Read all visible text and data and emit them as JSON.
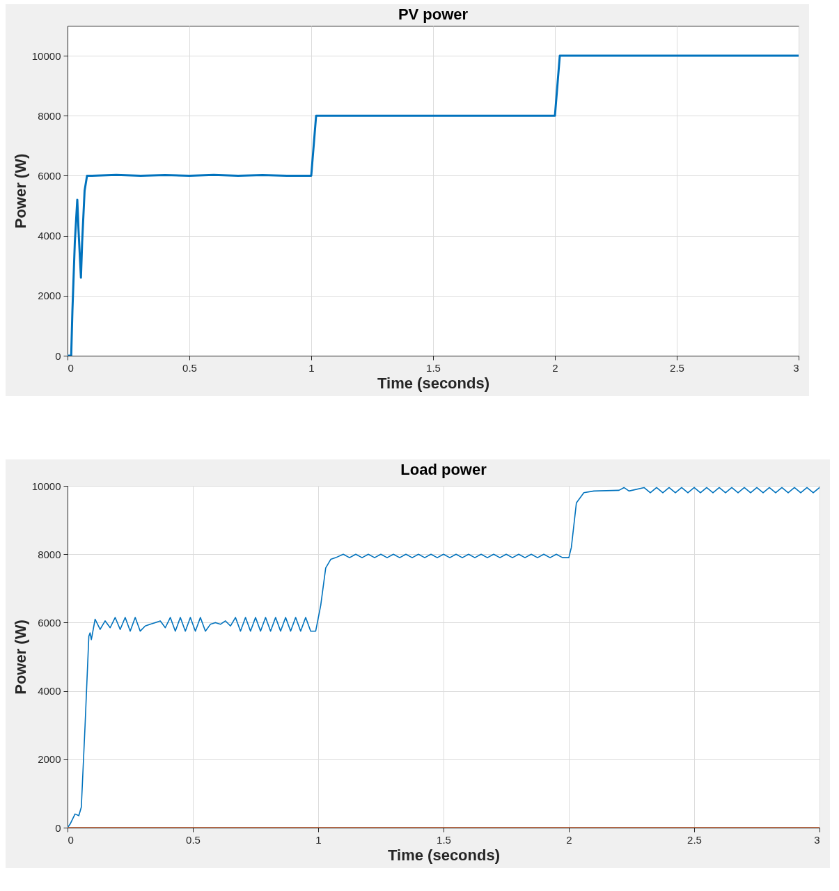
{
  "chart_data": [
    {
      "type": "line",
      "title": "PV power",
      "xlabel": "Time (seconds)",
      "ylabel": "Power (W)",
      "xlim": [
        0,
        3
      ],
      "ylim": [
        0,
        11000
      ],
      "xticks": [
        0,
        0.5,
        1,
        1.5,
        2,
        2.5,
        3
      ],
      "yticks": [
        0,
        2000,
        4000,
        6000,
        8000,
        10000
      ],
      "grid": true,
      "x": [
        0,
        0.015,
        0.02,
        0.03,
        0.04,
        0.045,
        0.055,
        0.06,
        0.07,
        0.08,
        0.1,
        0.2,
        0.3,
        0.4,
        0.5,
        0.6,
        0.7,
        0.8,
        0.9,
        1.0,
        1.02,
        1.1,
        1.5,
        2.0,
        2.02,
        2.1,
        2.5,
        3.0
      ],
      "series": [
        {
          "color": "#0072bd",
          "values": [
            0,
            0,
            1500,
            3800,
            5200,
            4200,
            2600,
            3800,
            5500,
            6000,
            6000,
            6030,
            6000,
            6020,
            6000,
            6030,
            6000,
            6020,
            6000,
            6000,
            8000,
            8000,
            8000,
            8000,
            10000,
            10000,
            10000,
            10000
          ]
        }
      ]
    },
    {
      "type": "line",
      "title": "Load power",
      "xlabel": "Time (seconds)",
      "ylabel": "Power (W)",
      "xlim": [
        0,
        3
      ],
      "ylim": [
        0,
        10000
      ],
      "xticks": [
        0,
        0.5,
        1,
        1.5,
        2,
        2.5,
        3
      ],
      "yticks": [
        0,
        2000,
        4000,
        6000,
        8000,
        10000
      ],
      "grid": true,
      "x": [
        0,
        0.01,
        0.03,
        0.045,
        0.055,
        0.07,
        0.085,
        0.09,
        0.095,
        0.11,
        0.13,
        0.15,
        0.17,
        0.19,
        0.21,
        0.23,
        0.25,
        0.27,
        0.29,
        0.31,
        0.33,
        0.35,
        0.37,
        0.39,
        0.41,
        0.43,
        0.45,
        0.47,
        0.49,
        0.51,
        0.53,
        0.55,
        0.57,
        0.59,
        0.61,
        0.63,
        0.65,
        0.67,
        0.69,
        0.71,
        0.73,
        0.75,
        0.77,
        0.79,
        0.81,
        0.83,
        0.85,
        0.87,
        0.89,
        0.91,
        0.93,
        0.95,
        0.97,
        0.99,
        1.01,
        1.03,
        1.05,
        1.07,
        1.1,
        1.125,
        1.15,
        1.175,
        1.2,
        1.225,
        1.25,
        1.275,
        1.3,
        1.325,
        1.35,
        1.375,
        1.4,
        1.425,
        1.45,
        1.475,
        1.5,
        1.525,
        1.55,
        1.575,
        1.6,
        1.625,
        1.65,
        1.675,
        1.7,
        1.725,
        1.75,
        1.775,
        1.8,
        1.825,
        1.85,
        1.875,
        1.9,
        1.925,
        1.95,
        1.975,
        2.0,
        2.01,
        2.03,
        2.06,
        2.1,
        2.2,
        2.22,
        2.24,
        2.3,
        2.325,
        2.35,
        2.375,
        2.4,
        2.425,
        2.45,
        2.475,
        2.5,
        2.525,
        2.55,
        2.575,
        2.6,
        2.625,
        2.65,
        2.675,
        2.7,
        2.725,
        2.75,
        2.775,
        2.8,
        2.825,
        2.85,
        2.875,
        2.9,
        2.925,
        2.95,
        2.975,
        3.0
      ],
      "series": [
        {
          "color": "#0072bd",
          "values": [
            0,
            100,
            400,
            350,
            600,
            3000,
            5600,
            5700,
            5500,
            6100,
            5800,
            6050,
            5850,
            6150,
            5800,
            6150,
            5750,
            6150,
            5750,
            5900,
            5950,
            6000,
            6050,
            5850,
            6150,
            5750,
            6150,
            5750,
            6150,
            5750,
            6150,
            5750,
            5950,
            6000,
            5950,
            6050,
            5900,
            6150,
            5750,
            6150,
            5750,
            6150,
            5750,
            6150,
            5750,
            6150,
            5750,
            6150,
            5750,
            6150,
            5750,
            6150,
            5750,
            5750,
            6500,
            7600,
            7850,
            7900,
            8000,
            7900,
            8000,
            7900,
            8000,
            7900,
            8000,
            7900,
            8000,
            7900,
            8000,
            7900,
            8000,
            7900,
            8000,
            7900,
            8000,
            7900,
            8000,
            7900,
            8000,
            7900,
            8000,
            7900,
            8000,
            7900,
            8000,
            7900,
            8000,
            7900,
            8000,
            7900,
            8000,
            7900,
            8000,
            7900,
            7900,
            8200,
            9500,
            9800,
            9850,
            9870,
            9950,
            9850,
            9950,
            9800,
            9950,
            9800,
            9950,
            9800,
            9950,
            9800,
            9950,
            9800,
            9950,
            9800,
            9950,
            9800,
            9950,
            9800,
            9950,
            9800,
            9950,
            9800,
            9950,
            9800,
            9950,
            9800,
            9950,
            9800,
            9950,
            9800,
            9950
          ]
        },
        {
          "color": "#d95319",
          "x": [
            0,
            3
          ],
          "values": [
            0,
            0
          ]
        }
      ]
    }
  ]
}
